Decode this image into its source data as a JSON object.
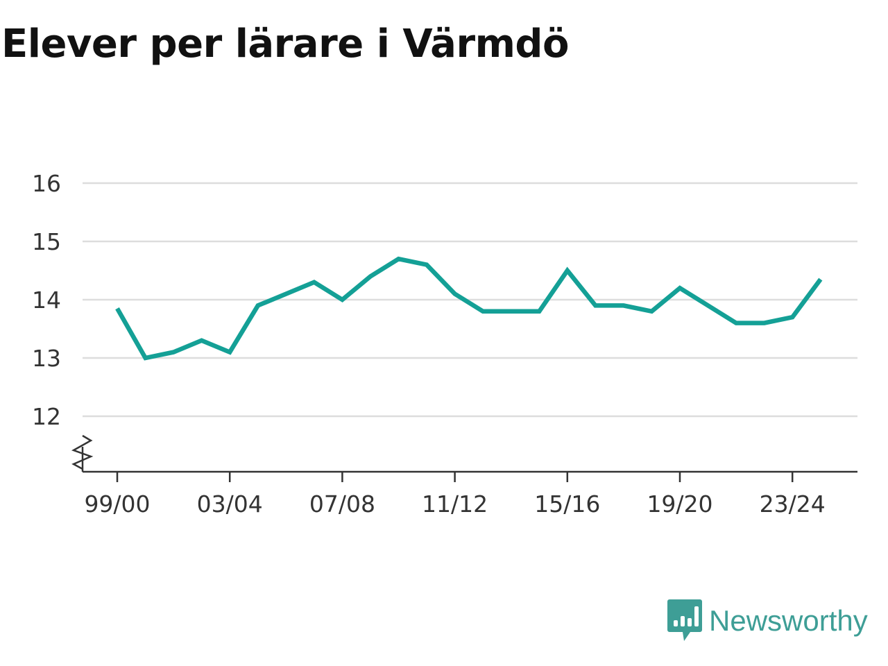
{
  "chart_data": {
    "type": "line",
    "title": "Elever per lärare i Värmdö",
    "xlabel": "",
    "ylabel": "",
    "x": [
      "99/00",
      "00/01",
      "01/02",
      "02/03",
      "03/04",
      "04/05",
      "05/06",
      "06/07",
      "07/08",
      "08/09",
      "09/10",
      "10/11",
      "11/12",
      "12/13",
      "13/14",
      "14/15",
      "15/16",
      "16/17",
      "17/18",
      "18/19",
      "19/20",
      "20/21",
      "21/22",
      "22/23",
      "23/24",
      "24/25"
    ],
    "x_tick_labels": [
      "99/00",
      "03/04",
      "07/08",
      "11/12",
      "15/16",
      "19/20",
      "23/24"
    ],
    "y_tick_labels": [
      "12",
      "13",
      "14",
      "15",
      "16"
    ],
    "series": [
      {
        "values": [
          13.85,
          13.0,
          13.1,
          13.3,
          13.1,
          13.9,
          14.1,
          14.3,
          14.0,
          14.4,
          14.7,
          14.6,
          14.1,
          13.8,
          13.8,
          13.8,
          14.5,
          13.9,
          13.9,
          13.8,
          14.2,
          13.9,
          13.6,
          13.6,
          13.7,
          14.35
        ],
        "color": "#14a096"
      }
    ],
    "ylim": [
      11.0,
      16.0
    ],
    "y_axis_break": true,
    "grid": true,
    "legend": "none"
  },
  "branding": {
    "name": "Newsworthy",
    "icon": "newsworthy-logo-icon",
    "color": "#3e9e96"
  }
}
